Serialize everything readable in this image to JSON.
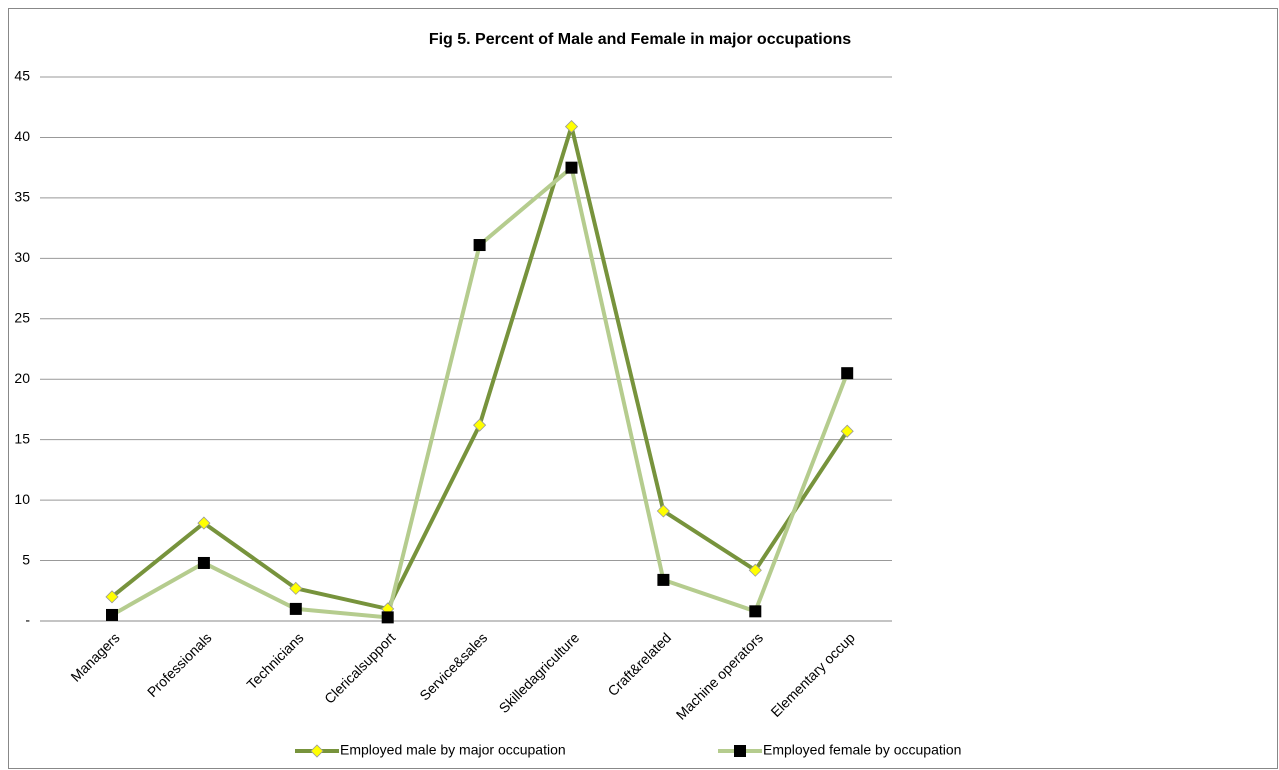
{
  "chart_data": {
    "type": "line",
    "title": "Fig 5. Percent of Male and Female in major occupations",
    "categories": [
      "Managers",
      "Professionals",
      "Technicians",
      "Clericalsupport",
      "Service&sales",
      "Skilledagriculture",
      "Craft&related",
      "Machine operators",
      "Elementary occup"
    ],
    "series": [
      {
        "name": "Employed male by major occupation",
        "color": "#77933c",
        "marker_color": "#ffff00",
        "marker": "diamond",
        "values": [
          2.0,
          8.1,
          2.7,
          1.0,
          16.2,
          40.9,
          9.1,
          4.2,
          15.7
        ]
      },
      {
        "name": "Employed female by occupation",
        "color": "#b5cc8e",
        "marker_color": "#000000",
        "marker": "square",
        "values": [
          0.5,
          4.8,
          1.0,
          0.3,
          31.1,
          37.5,
          3.4,
          0.8,
          20.5
        ]
      }
    ],
    "ylim": [
      0,
      45
    ],
    "yticks": [
      {
        "value": 0,
        "label": "-"
      },
      5,
      10,
      15,
      20,
      25,
      30,
      35,
      40,
      45
    ],
    "grid": true,
    "legend": "bottom"
  }
}
